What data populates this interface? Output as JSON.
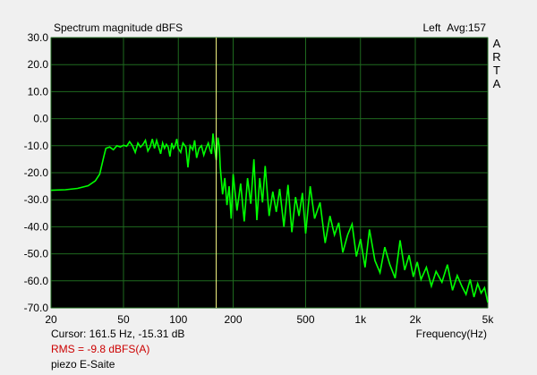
{
  "header": {
    "title": "Spectrum magnitude dBFS",
    "channel": "Left",
    "averages": "Avg:157"
  },
  "brand_letters": [
    "A",
    "R",
    "T",
    "A"
  ],
  "footer": {
    "cursor_text": "Cursor:   161.5 Hz, -15.31 dB",
    "x_axis_label": "Frequency(Hz)",
    "rms_text": "RMS =   -9.8 dBFS(A)",
    "note": "piezo E-Saite"
  },
  "colors": {
    "background": "#000000",
    "grid": "#1f6a1f",
    "trace": "#00ff00",
    "cursor": "#ffff88",
    "rms": "#cc0000"
  },
  "chart_data": {
    "type": "line",
    "title": "Spectrum magnitude dBFS",
    "xlabel": "Frequency(Hz)",
    "ylabel": "",
    "x_scale": "log",
    "xlim": [
      20,
      5000
    ],
    "ylim": [
      -70,
      30
    ],
    "grid": true,
    "x_ticks": [
      {
        "value": 20,
        "label": "20"
      },
      {
        "value": 50,
        "label": "50"
      },
      {
        "value": 100,
        "label": "100"
      },
      {
        "value": 200,
        "label": "200"
      },
      {
        "value": 500,
        "label": "500"
      },
      {
        "value": 1000,
        "label": "1k"
      },
      {
        "value": 2000,
        "label": "2k"
      },
      {
        "value": 5000,
        "label": "5k"
      }
    ],
    "y_ticks": [
      {
        "value": 30,
        "label": "30.0"
      },
      {
        "value": 20,
        "label": "20.0"
      },
      {
        "value": 10,
        "label": "10.0"
      },
      {
        "value": 0,
        "label": "0.0"
      },
      {
        "value": -10,
        "label": "-10.0"
      },
      {
        "value": -20,
        "label": "-20.0"
      },
      {
        "value": -30,
        "label": "-30.0"
      },
      {
        "value": -40,
        "label": "-40.0"
      },
      {
        "value": -50,
        "label": "-50.0"
      },
      {
        "value": -60,
        "label": "-60.0"
      },
      {
        "value": -70,
        "label": "-70.0"
      }
    ],
    "cursor": {
      "x": 161.5,
      "y": -15.31
    },
    "series": [
      {
        "x": [
          20,
          24,
          28,
          32,
          35,
          37,
          39,
          40,
          42,
          44,
          46,
          48,
          50,
          52,
          54,
          56,
          58,
          60,
          62,
          64,
          66,
          68,
          70,
          72,
          74,
          76,
          78,
          80,
          82,
          84,
          86,
          88,
          90,
          92,
          94,
          96,
          98,
          100,
          103,
          106,
          110,
          113,
          116,
          120,
          123,
          126,
          130,
          134,
          138,
          142,
          146,
          150,
          152,
          155,
          158,
          161.5,
          165,
          168,
          170,
          175,
          180,
          185,
          190,
          195,
          200,
          210,
          220,
          230,
          240,
          250,
          260,
          270,
          280,
          290,
          300,
          315,
          330,
          345,
          360,
          380,
          400,
          420,
          440,
          460,
          480,
          500,
          530,
          560,
          600,
          640,
          680,
          720,
          760,
          800,
          850,
          900,
          950,
          1000,
          1060,
          1120,
          1200,
          1280,
          1360,
          1450,
          1550,
          1650,
          1750,
          1850,
          1950,
          2050,
          2150,
          2300,
          2450,
          2600,
          2800,
          3000,
          3200,
          3400,
          3600,
          3800,
          4000,
          4200,
          4400,
          4600,
          4800,
          5000
        ],
        "values": [
          -26.5,
          -26.3,
          -25.8,
          -24.8,
          -23.0,
          -20.5,
          -14.0,
          -11.0,
          -10.5,
          -11.5,
          -10.0,
          -10.5,
          -9.8,
          -10.2,
          -8.5,
          -10.0,
          -12.5,
          -9.0,
          -10.5,
          -9.5,
          -8.0,
          -12.0,
          -10.5,
          -7.5,
          -11.0,
          -8.0,
          -10.5,
          -13.0,
          -9.0,
          -11.0,
          -9.5,
          -10.5,
          -14.0,
          -9.0,
          -11.0,
          -10.0,
          -7.5,
          -11.0,
          -12.5,
          -9.0,
          -10.5,
          -18.0,
          -10.0,
          -11.5,
          -8.0,
          -14.5,
          -11.0,
          -10.0,
          -13.5,
          -11.0,
          -9.0,
          -12.0,
          -13.0,
          -5.5,
          -11.0,
          -15.3,
          -7.0,
          -10.5,
          -18.0,
          -28.0,
          -22.0,
          -32.0,
          -25.0,
          -37.0,
          -20.5,
          -34.0,
          -24.0,
          -38.0,
          -22.0,
          -31.5,
          -15.0,
          -37.5,
          -22.0,
          -31.0,
          -17.5,
          -36.0,
          -27.0,
          -34.5,
          -26.0,
          -40.0,
          -24.5,
          -42.0,
          -29.0,
          -36.0,
          -27.5,
          -42.5,
          -25.0,
          -37.0,
          -31.0,
          -46.0,
          -36.0,
          -43.0,
          -38.5,
          -49.5,
          -43.0,
          -39.0,
          -51.0,
          -44.5,
          -55.0,
          -41.0,
          -52.5,
          -57.0,
          -47.5,
          -54.0,
          -59.0,
          -45.0,
          -56.0,
          -50.5,
          -58.5,
          -53.0,
          -59.5,
          -55.0,
          -62.0,
          -56.5,
          -60.5,
          -54.0,
          -63.5,
          -58.0,
          -62.0,
          -65.0,
          -59.5,
          -66.0,
          -61.0,
          -64.5,
          -62.5,
          -68.0
        ]
      }
    ]
  }
}
